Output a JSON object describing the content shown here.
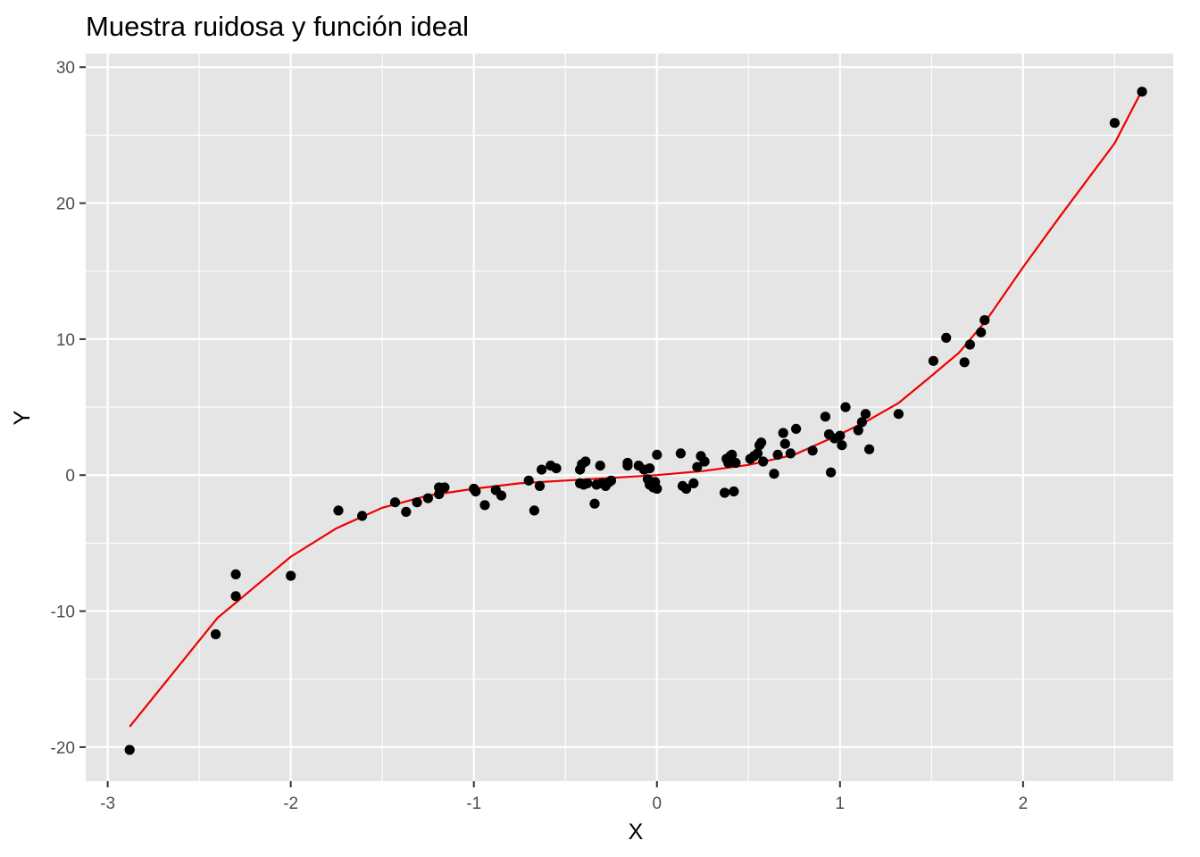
{
  "chart_data": {
    "type": "scatter",
    "title": "Muestra ruidosa y función ideal",
    "xlabel": "X",
    "ylabel": "Y",
    "xlim": [
      -3.12,
      2.82
    ],
    "ylim": [
      -22.5,
      31.0
    ],
    "x_ticks": [
      -3,
      -2,
      -1,
      0,
      1,
      2
    ],
    "x_tick_labels": [
      "-3",
      "-2",
      "-1",
      "0",
      "1",
      "2"
    ],
    "y_ticks": [
      -20,
      -10,
      0,
      10,
      20,
      30
    ],
    "y_tick_labels": [
      "-20",
      "-10",
      "0",
      "10",
      "20",
      "30"
    ],
    "grid": true,
    "legend": "none",
    "colors": {
      "panel": "#e5e5e5",
      "grid": "#ffffff",
      "points": "#000000",
      "line": "#ee0000",
      "tick_text": "#4d4d4d",
      "tick_mark": "#333333"
    },
    "series": [
      {
        "kind": "points",
        "x": [
          -2.88,
          -2.41,
          -2.3,
          -2.3,
          -2.0,
          -1.74,
          -1.61,
          -1.43,
          -1.37,
          -1.31,
          -1.25,
          -1.19,
          -1.19,
          -1.16,
          -1.0,
          -0.99,
          -0.94,
          -0.88,
          -0.85,
          -0.7,
          -0.67,
          -0.64,
          -0.63,
          -0.58,
          -0.55,
          -0.42,
          -0.42,
          -0.41,
          -0.4,
          -0.39,
          -0.38,
          -0.34,
          -0.33,
          -0.31,
          -0.3,
          -0.28,
          -0.26,
          -0.25,
          -0.16,
          -0.16,
          -0.1,
          -0.07,
          -0.05,
          -0.04,
          -0.04,
          -0.02,
          -0.01,
          0.0,
          0.0,
          0.13,
          0.14,
          0.16,
          0.2,
          0.22,
          0.24,
          0.26,
          0.37,
          0.38,
          0.39,
          0.4,
          0.41,
          0.42,
          0.43,
          0.51,
          0.53,
          0.55,
          0.56,
          0.57,
          0.58,
          0.64,
          0.66,
          0.69,
          0.7,
          0.73,
          0.76,
          0.85,
          0.92,
          0.94,
          0.95,
          0.97,
          1.0,
          1.01,
          1.03,
          1.1,
          1.12,
          1.14,
          1.16,
          1.32,
          1.51,
          1.58,
          1.68,
          1.71,
          1.77,
          1.79,
          2.5,
          2.65
        ],
        "y": [
          -20.2,
          -11.7,
          -7.3,
          -8.9,
          -7.4,
          -2.6,
          -3.0,
          -2.0,
          -2.7,
          -2.0,
          -1.7,
          -0.9,
          -1.4,
          -0.9,
          -1.0,
          -1.2,
          -2.2,
          -1.1,
          -1.5,
          -0.4,
          -2.6,
          -0.8,
          0.4,
          0.7,
          0.5,
          -0.6,
          0.4,
          0.8,
          -0.7,
          1.0,
          -0.6,
          -2.1,
          -0.7,
          0.7,
          -0.6,
          -0.8,
          -0.5,
          -0.4,
          0.9,
          0.7,
          0.7,
          0.4,
          -0.3,
          -0.7,
          0.5,
          -0.9,
          -0.5,
          1.5,
          -1.0,
          1.6,
          -0.8,
          -1.0,
          -0.6,
          0.6,
          1.4,
          1.0,
          -1.3,
          1.2,
          0.9,
          1.4,
          1.5,
          -1.2,
          0.9,
          1.2,
          1.4,
          1.6,
          2.2,
          2.4,
          1.0,
          0.1,
          1.5,
          3.1,
          2.3,
          1.6,
          3.4,
          1.8,
          4.3,
          3.0,
          0.2,
          2.7,
          2.9,
          2.2,
          5.0,
          3.3,
          3.9,
          4.5,
          1.9,
          4.5,
          8.4,
          10.1,
          8.3,
          9.6,
          10.5,
          11.4,
          25.9,
          28.2
        ]
      },
      {
        "kind": "line",
        "x": [
          -2.88,
          -2.4,
          -2.0,
          -1.75,
          -1.5,
          -1.25,
          -1.0,
          -0.75,
          -0.5,
          -0.25,
          0.0,
          0.25,
          0.5,
          0.75,
          1.0,
          1.15,
          1.32,
          1.5,
          1.65,
          1.8,
          2.0,
          2.2,
          2.35,
          2.5,
          2.65
        ],
        "y": [
          -18.5,
          -10.5,
          -6.0,
          -3.9,
          -2.4,
          -1.5,
          -1.0,
          -0.6,
          -0.4,
          -0.2,
          0.0,
          0.3,
          0.75,
          1.5,
          3.0,
          4.0,
          5.3,
          7.3,
          9.0,
          11.4,
          15.3,
          19.0,
          21.7,
          24.4,
          28.3
        ]
      }
    ]
  }
}
